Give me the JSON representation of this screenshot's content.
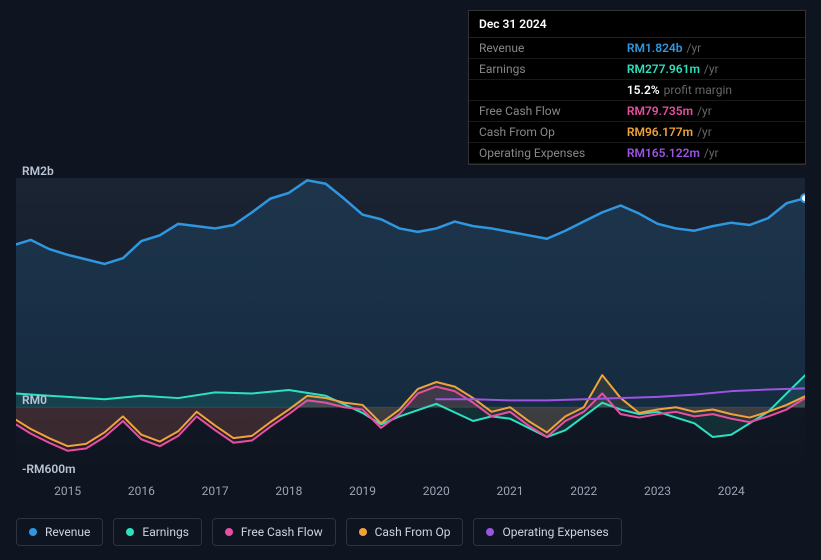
{
  "tooltip": {
    "title": "Dec 31 2024",
    "rows": [
      {
        "label": "Revenue",
        "value": "RM1.824b",
        "unit": "/yr",
        "color": "#2f97e0"
      },
      {
        "label": "Earnings",
        "value": "RM277.961m",
        "unit": "/yr",
        "color": "#2de0c0"
      },
      {
        "label": "",
        "value": "15.2%",
        "unit": "profit margin",
        "color": "#ffffff"
      },
      {
        "label": "Free Cash Flow",
        "value": "RM79.735m",
        "unit": "/yr",
        "color": "#e84fa0"
      },
      {
        "label": "Cash From Op",
        "value": "RM96.177m",
        "unit": "/yr",
        "color": "#f0a33a"
      },
      {
        "label": "Operating Expenses",
        "value": "RM165.122m",
        "unit": "/yr",
        "color": "#9b55e0"
      }
    ]
  },
  "chart": {
    "plot_bg_top": "#1b2433",
    "plot_bg_bottom": "#0e1420",
    "grid_color": "#2a3340",
    "xdomain": [
      2014.3,
      2025.0
    ],
    "ydomain": [
      -600,
      2000
    ],
    "xticks": [
      2015,
      2016,
      2017,
      2018,
      2019,
      2020,
      2021,
      2022,
      2023,
      2024
    ],
    "yticks": [
      {
        "v": 2000,
        "label": "RM2b"
      },
      {
        "v": 0,
        "label": "RM0"
      },
      {
        "v": -600,
        "label": "-RM600m"
      }
    ],
    "series": [
      {
        "name": "Revenue",
        "legend_key": "revenue",
        "stroke": "#2f97e0",
        "stroke_width": 2.5,
        "fill": "#2f97e0",
        "fill_opacity": 0.15,
        "fill_to": 0,
        "points": [
          [
            2014.3,
            1420
          ],
          [
            2014.5,
            1460
          ],
          [
            2014.75,
            1380
          ],
          [
            2015.0,
            1330
          ],
          [
            2015.25,
            1290
          ],
          [
            2015.5,
            1250
          ],
          [
            2015.75,
            1300
          ],
          [
            2016.0,
            1450
          ],
          [
            2016.25,
            1500
          ],
          [
            2016.5,
            1600
          ],
          [
            2016.75,
            1580
          ],
          [
            2017.0,
            1560
          ],
          [
            2017.25,
            1590
          ],
          [
            2017.5,
            1700
          ],
          [
            2017.75,
            1820
          ],
          [
            2018.0,
            1870
          ],
          [
            2018.25,
            1980
          ],
          [
            2018.5,
            1950
          ],
          [
            2018.75,
            1820
          ],
          [
            2019.0,
            1680
          ],
          [
            2019.25,
            1640
          ],
          [
            2019.5,
            1560
          ],
          [
            2019.75,
            1530
          ],
          [
            2020.0,
            1560
          ],
          [
            2020.25,
            1620
          ],
          [
            2020.5,
            1580
          ],
          [
            2020.75,
            1560
          ],
          [
            2021.0,
            1530
          ],
          [
            2021.25,
            1500
          ],
          [
            2021.5,
            1470
          ],
          [
            2021.75,
            1540
          ],
          [
            2022.0,
            1620
          ],
          [
            2022.25,
            1700
          ],
          [
            2022.5,
            1760
          ],
          [
            2022.75,
            1690
          ],
          [
            2023.0,
            1600
          ],
          [
            2023.25,
            1560
          ],
          [
            2023.5,
            1540
          ],
          [
            2023.75,
            1580
          ],
          [
            2024.0,
            1610
          ],
          [
            2024.25,
            1590
          ],
          [
            2024.5,
            1650
          ],
          [
            2024.75,
            1780
          ],
          [
            2025.0,
            1824
          ]
        ]
      },
      {
        "name": "Earnings",
        "legend_key": "earnings",
        "stroke": "#2de0c0",
        "stroke_width": 2,
        "fill": "#2de0c0",
        "fill_opacity": 0.12,
        "fill_to": 0,
        "points": [
          [
            2014.3,
            120
          ],
          [
            2014.75,
            100
          ],
          [
            2015.0,
            90
          ],
          [
            2015.5,
            70
          ],
          [
            2016.0,
            100
          ],
          [
            2016.5,
            80
          ],
          [
            2017.0,
            130
          ],
          [
            2017.5,
            120
          ],
          [
            2018.0,
            150
          ],
          [
            2018.5,
            100
          ],
          [
            2019.0,
            -50
          ],
          [
            2019.25,
            -150
          ],
          [
            2019.5,
            -80
          ],
          [
            2020.0,
            30
          ],
          [
            2020.5,
            -120
          ],
          [
            2020.75,
            -80
          ],
          [
            2021.0,
            -100
          ],
          [
            2021.25,
            -180
          ],
          [
            2021.5,
            -260
          ],
          [
            2021.75,
            -200
          ],
          [
            2022.0,
            -80
          ],
          [
            2022.25,
            40
          ],
          [
            2022.5,
            -20
          ],
          [
            2022.75,
            -60
          ],
          [
            2023.0,
            -40
          ],
          [
            2023.25,
            -90
          ],
          [
            2023.5,
            -140
          ],
          [
            2023.75,
            -260
          ],
          [
            2024.0,
            -240
          ],
          [
            2024.25,
            -140
          ],
          [
            2024.5,
            -40
          ],
          [
            2024.75,
            120
          ],
          [
            2025.0,
            278
          ]
        ]
      },
      {
        "name": "Free Cash Flow",
        "legend_key": "fcf",
        "stroke": "#e84fa0",
        "stroke_width": 2,
        "fill": "#e84fa0",
        "fill_opacity": 0.1,
        "fill_to": 0,
        "points": [
          [
            2014.3,
            -150
          ],
          [
            2014.5,
            -230
          ],
          [
            2014.75,
            -310
          ],
          [
            2015.0,
            -380
          ],
          [
            2015.25,
            -360
          ],
          [
            2015.5,
            -260
          ],
          [
            2015.75,
            -120
          ],
          [
            2016.0,
            -280
          ],
          [
            2016.25,
            -340
          ],
          [
            2016.5,
            -250
          ],
          [
            2016.75,
            -80
          ],
          [
            2017.0,
            -200
          ],
          [
            2017.25,
            -310
          ],
          [
            2017.5,
            -290
          ],
          [
            2017.75,
            -170
          ],
          [
            2018.0,
            -60
          ],
          [
            2018.25,
            60
          ],
          [
            2018.5,
            40
          ],
          [
            2018.75,
            0
          ],
          [
            2019.0,
            -20
          ],
          [
            2019.25,
            -180
          ],
          [
            2019.5,
            -60
          ],
          [
            2019.75,
            120
          ],
          [
            2020.0,
            180
          ],
          [
            2020.25,
            140
          ],
          [
            2020.5,
            40
          ],
          [
            2020.75,
            -80
          ],
          [
            2021.0,
            -40
          ],
          [
            2021.25,
            -160
          ],
          [
            2021.5,
            -260
          ],
          [
            2021.75,
            -120
          ],
          [
            2022.0,
            -40
          ],
          [
            2022.25,
            120
          ],
          [
            2022.5,
            -60
          ],
          [
            2022.75,
            -90
          ],
          [
            2023.0,
            -60
          ],
          [
            2023.25,
            -40
          ],
          [
            2023.5,
            -80
          ],
          [
            2023.75,
            -60
          ],
          [
            2024.0,
            -100
          ],
          [
            2024.25,
            -130
          ],
          [
            2024.5,
            -80
          ],
          [
            2024.75,
            -20
          ],
          [
            2025.0,
            80
          ]
        ]
      },
      {
        "name": "Cash From Op",
        "legend_key": "cfo",
        "stroke": "#f0a33a",
        "stroke_width": 2,
        "fill": "#f0a33a",
        "fill_opacity": 0.1,
        "fill_to": 0,
        "points": [
          [
            2014.3,
            -110
          ],
          [
            2014.5,
            -190
          ],
          [
            2014.75,
            -270
          ],
          [
            2015.0,
            -340
          ],
          [
            2015.25,
            -320
          ],
          [
            2015.5,
            -220
          ],
          [
            2015.75,
            -80
          ],
          [
            2016.0,
            -240
          ],
          [
            2016.25,
            -300
          ],
          [
            2016.5,
            -210
          ],
          [
            2016.75,
            -40
          ],
          [
            2017.0,
            -160
          ],
          [
            2017.25,
            -270
          ],
          [
            2017.5,
            -250
          ],
          [
            2017.75,
            -130
          ],
          [
            2018.0,
            -20
          ],
          [
            2018.25,
            100
          ],
          [
            2018.5,
            80
          ],
          [
            2018.75,
            40
          ],
          [
            2019.0,
            20
          ],
          [
            2019.25,
            -140
          ],
          [
            2019.5,
            -20
          ],
          [
            2019.75,
            160
          ],
          [
            2020.0,
            220
          ],
          [
            2020.25,
            180
          ],
          [
            2020.5,
            80
          ],
          [
            2020.75,
            -40
          ],
          [
            2021.0,
            0
          ],
          [
            2021.25,
            -120
          ],
          [
            2021.5,
            -220
          ],
          [
            2021.75,
            -80
          ],
          [
            2022.0,
            0
          ],
          [
            2022.25,
            280
          ],
          [
            2022.5,
            80
          ],
          [
            2022.75,
            -50
          ],
          [
            2023.0,
            -20
          ],
          [
            2023.25,
            0
          ],
          [
            2023.5,
            -40
          ],
          [
            2023.75,
            -20
          ],
          [
            2024.0,
            -60
          ],
          [
            2024.25,
            -90
          ],
          [
            2024.5,
            -40
          ],
          [
            2024.75,
            20
          ],
          [
            2025.0,
            96
          ]
        ]
      },
      {
        "name": "Operating Expenses",
        "legend_key": "opex",
        "stroke": "#9b55e0",
        "stroke_width": 2,
        "fill": null,
        "fill_opacity": 0,
        "fill_to": 0,
        "points": [
          [
            2020.0,
            70
          ],
          [
            2020.5,
            70
          ],
          [
            2021.0,
            60
          ],
          [
            2021.5,
            60
          ],
          [
            2022.0,
            70
          ],
          [
            2022.5,
            80
          ],
          [
            2023.0,
            90
          ],
          [
            2023.5,
            110
          ],
          [
            2024.0,
            140
          ],
          [
            2024.5,
            155
          ],
          [
            2025.0,
            165
          ]
        ]
      }
    ],
    "legend": [
      {
        "key": "revenue",
        "label": "Revenue",
        "color": "#2f97e0"
      },
      {
        "key": "earnings",
        "label": "Earnings",
        "color": "#2de0c0"
      },
      {
        "key": "fcf",
        "label": "Free Cash Flow",
        "color": "#e84fa0"
      },
      {
        "key": "cfo",
        "label": "Cash From Op",
        "color": "#f0a33a"
      },
      {
        "key": "opex",
        "label": "Operating Expenses",
        "color": "#9b55e0"
      }
    ]
  }
}
